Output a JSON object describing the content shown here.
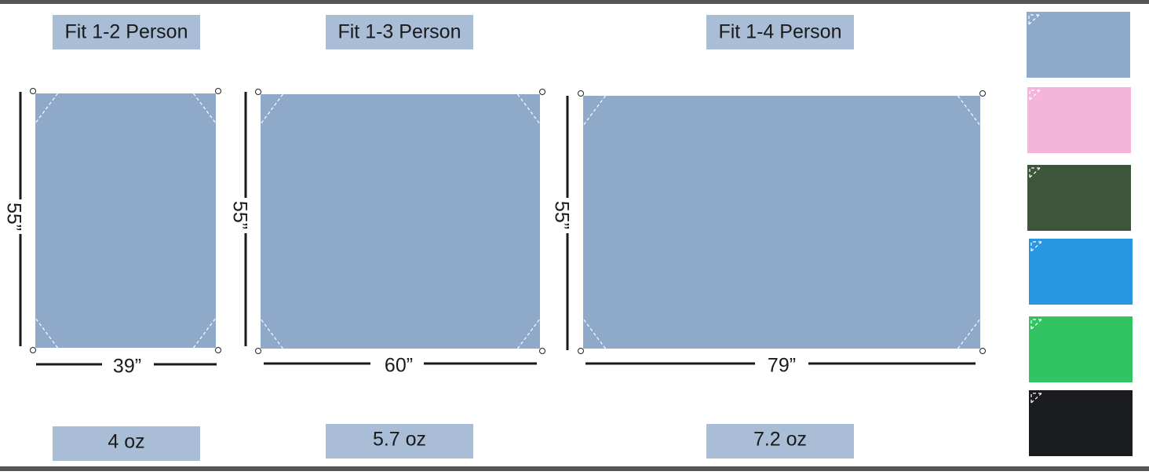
{
  "tarps": [
    {
      "label": "Fit 1-2 Person",
      "height": "55”",
      "width": "39”",
      "weight": "4 oz"
    },
    {
      "label": "Fit 1-3 Person",
      "height": "55”",
      "width": "60”",
      "weight": "5.7 oz"
    },
    {
      "label": "Fit 1-4 Person",
      "height": "55”",
      "width": "79”",
      "weight": "7.2 oz"
    }
  ]
}
